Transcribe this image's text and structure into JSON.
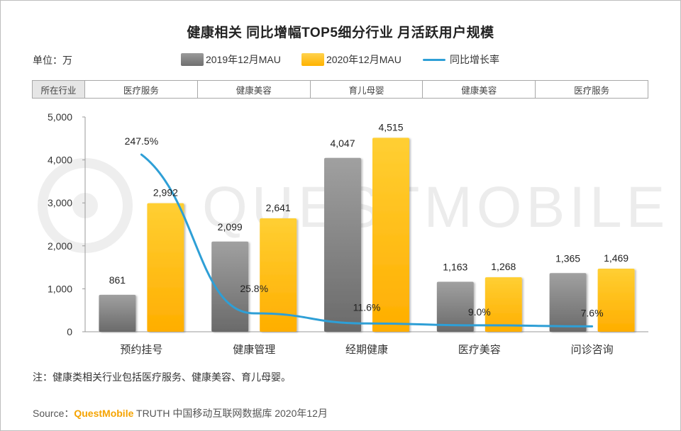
{
  "title": "健康相关 同比增幅TOP5细分行业 月活跃用户规模",
  "unit_label": "单位：万",
  "industry_table": {
    "header": "所在行业",
    "cells": [
      "医疗服务",
      "健康美容",
      "育儿母婴",
      "健康美容",
      "医疗服务"
    ]
  },
  "chart_data": {
    "type": "bar",
    "categories": [
      "预约挂号",
      "健康管理",
      "经期健康",
      "医疗美容",
      "问诊咨询"
    ],
    "series": [
      {
        "name": "2019年12月MAU",
        "type": "bar",
        "color": "#8c8c8c",
        "values": [
          861,
          2099,
          4047,
          1163,
          1365
        ],
        "labels": [
          "861",
          "2,099",
          "4,047",
          "1,163",
          "1,365"
        ]
      },
      {
        "name": "2020年12月MAU",
        "type": "bar",
        "color": "#ffc000",
        "values": [
          2992,
          2641,
          4515,
          1268,
          1469
        ],
        "labels": [
          "2,992",
          "2,641",
          "4,515",
          "1,268",
          "1,469"
        ]
      },
      {
        "name": "同比增长率",
        "type": "line",
        "color": "#2e9fd6",
        "values": [
          247.5,
          25.8,
          11.6,
          9.0,
          7.6
        ],
        "labels": [
          "247.5%",
          "25.8%",
          "11.6%",
          "9.0%",
          "7.6%"
        ]
      }
    ],
    "y_ticks": [
      "5,000",
      "4,000",
      "3,000",
      "2,000",
      "1,000",
      "0"
    ],
    "ylim": [
      0,
      5000
    ],
    "y2lim": [
      0,
      300
    ],
    "grid": false,
    "legend_position": "top"
  },
  "watermark": "QUESTMOBILE",
  "note": "注：健康类相关行业包括医疗服务、健康美容、育儿母婴。",
  "source": {
    "prefix": "Source：",
    "brand": "QuestMobile",
    "suffix": " TRUTH 中国移动互联网数据库 2020年12月"
  }
}
